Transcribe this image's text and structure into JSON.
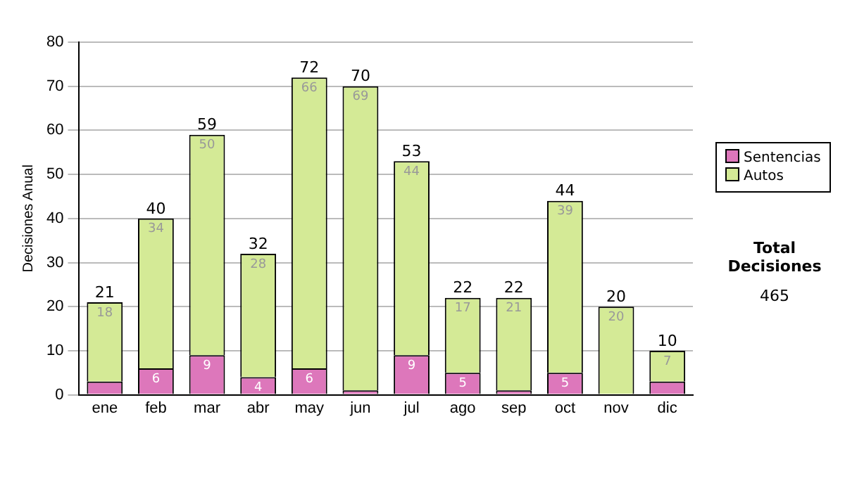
{
  "chart_data": {
    "type": "bar",
    "stacked": true,
    "ylabel": "Decisiones Anual",
    "categories": [
      "ene",
      "feb",
      "mar",
      "abr",
      "may",
      "jun",
      "jul",
      "ago",
      "sep",
      "oct",
      "nov",
      "dic"
    ],
    "series": [
      {
        "name": "Sentencias",
        "color": "#dd77bb",
        "values": [
          3,
          6,
          9,
          4,
          6,
          1,
          9,
          5,
          1,
          5,
          0,
          3
        ],
        "value_labels": [
          null,
          "6",
          "9",
          "4",
          "6",
          null,
          "9",
          "5",
          null,
          "5",
          null,
          null
        ]
      },
      {
        "name": "Autos",
        "color": "#d4ea96",
        "values": [
          18,
          34,
          50,
          28,
          66,
          69,
          44,
          17,
          21,
          39,
          20,
          7
        ],
        "value_labels": [
          "18",
          "34",
          "50",
          "28",
          "66",
          "69",
          "44",
          "17",
          "21",
          "39",
          "20",
          "7"
        ]
      }
    ],
    "totals": [
      "21",
      "40",
      "59",
      "32",
      "72",
      "70",
      "53",
      "22",
      "22",
      "44",
      "20",
      "10"
    ],
    "ylim": [
      0,
      80
    ],
    "yticks": [
      0,
      10,
      20,
      30,
      40,
      50,
      60,
      70,
      80
    ],
    "grid": "y",
    "legend": "right",
    "annotations": [
      "Total Decisiones",
      "465"
    ]
  }
}
